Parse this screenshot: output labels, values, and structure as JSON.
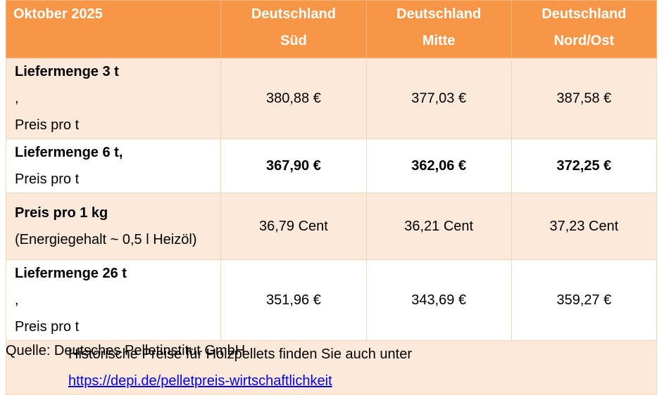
{
  "header": {
    "title": "Oktober 2025",
    "regions": [
      {
        "line1": "Deutschland",
        "line2": "Süd"
      },
      {
        "line1": "Deutschland",
        "line2": "Mitte"
      },
      {
        "line1": "Deutschland",
        "line2": "Nord/Ost"
      }
    ]
  },
  "rows": [
    {
      "label_main": "Liefermenge 3 t",
      "label_suffix": ",",
      "label_sub": "Preis pro t",
      "values": [
        "380,88 €",
        "377,03 €",
        "387,58 €"
      ],
      "bold_values": false
    },
    {
      "label_main": "Liefermenge 6 t,",
      "label_suffix": "",
      "label_sub": "Preis pro t",
      "values": [
        "367,90 €",
        "362,06 €",
        "372,25 €"
      ],
      "bold_values": true
    },
    {
      "label_main": "Preis pro 1 kg",
      "label_suffix": "",
      "label_sub": "(Energiegehalt ~ 0,5 l Heizöl)",
      "values": [
        "36,79 Cent",
        "36,21 Cent",
        "37,23 Cent"
      ],
      "bold_values": false
    },
    {
      "label_main": "Liefermenge 26 t",
      "label_suffix": ",",
      "label_sub": "Preis pro t",
      "values": [
        "351,96 €",
        "343,69 €",
        "359,27 €"
      ],
      "bold_values": false
    }
  ],
  "note": {
    "text": "Historische Preise für Holzpellets finden Sie auch unter",
    "link": "https://depi.de/pelletpreis-wirtschaftlichkeit"
  },
  "source": "Quelle: Deutsches Pelletinstitut GmbH",
  "colors": {
    "header_bg": "#f79646",
    "tint_bg": "#fde9d9",
    "link": "#0000ee"
  }
}
